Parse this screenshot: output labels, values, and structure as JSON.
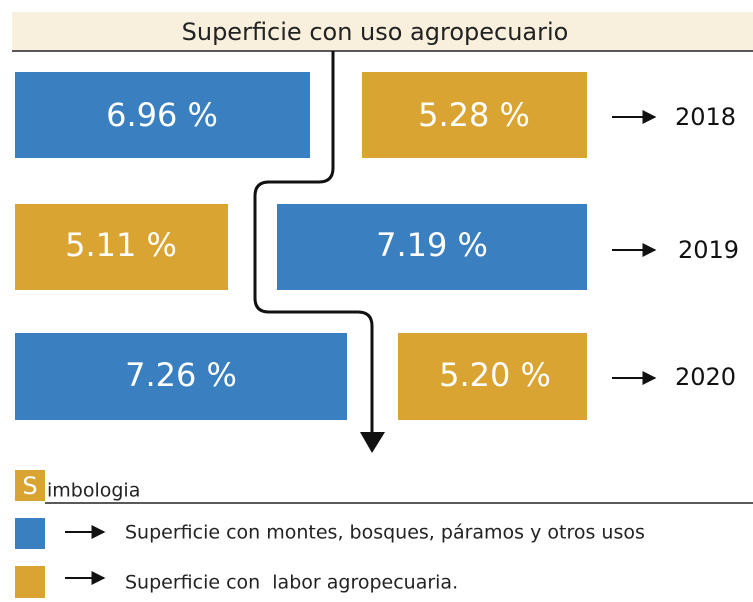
{
  "title": "Superficie con uso agropecuario",
  "rows": [
    {
      "blue": "6.96 %",
      "gold": "5.28 %",
      "year": "2018"
    },
    {
      "blue": "7.19 %",
      "gold": "5.11 %",
      "year": "2019"
    },
    {
      "blue": "7.26 %",
      "gold": "5.20 %",
      "year": "2020"
    }
  ],
  "legend": {
    "initial": "S",
    "heading": "imbologia",
    "items": [
      "Superficie con montes, bosques, páramos y otros usos",
      "Superficie con  labor agropecuaria."
    ]
  }
}
